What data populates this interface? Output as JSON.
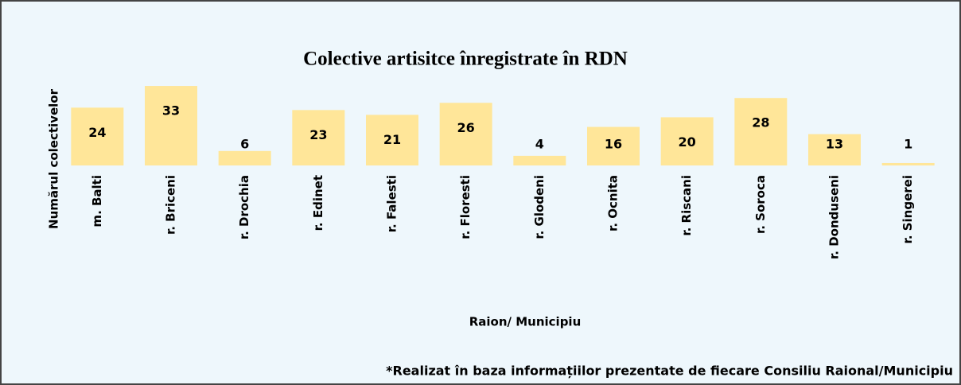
{
  "chart_data": {
    "type": "bar",
    "title": "Colective artisitce înregistrate în RDN",
    "y_label": "Numărul colectivelor",
    "x_label": "Raion/ Municipiu",
    "footnote": "*Realizat în baza informațiilor prezentate de fiecare Consiliu Raional/Municipiu",
    "categories": [
      "m. Balti",
      "r. Briceni",
      "r. Drochia",
      "r. Edinet",
      "r. Falesti",
      "r. Floresti",
      "r. Glodeni",
      "r. Ocnita",
      "r. Riscani",
      "r. Soroca",
      "r. Donduseni",
      "r. Singerei"
    ],
    "values": [
      24,
      33,
      6,
      23,
      21,
      26,
      4,
      16,
      20,
      28,
      13,
      1
    ],
    "color": "#ffe699",
    "ylim": [
      0,
      35
    ]
  }
}
